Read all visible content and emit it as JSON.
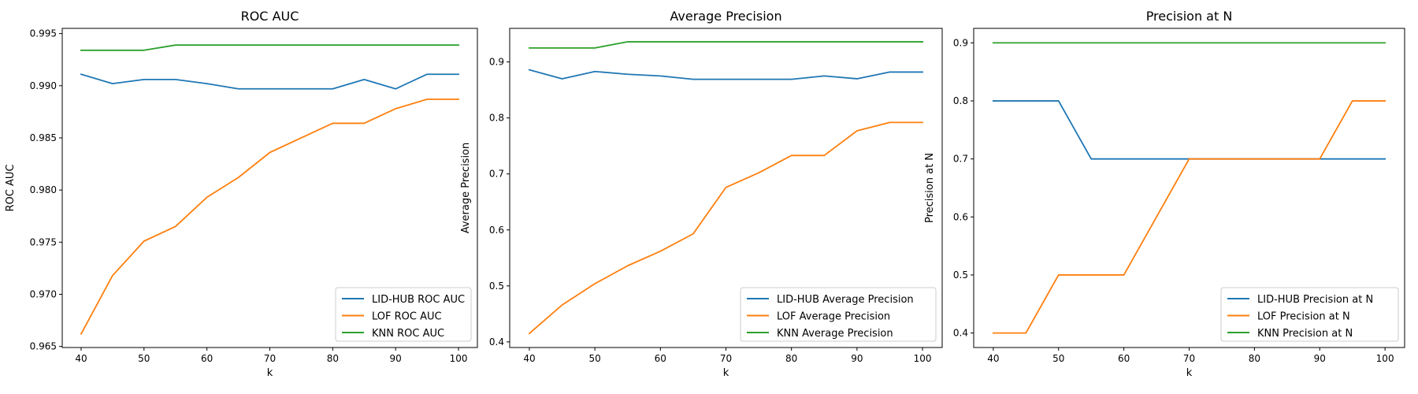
{
  "chart_data": [
    {
      "type": "line",
      "title": "ROC AUC",
      "xlabel": "k",
      "ylabel": "ROC AUC",
      "xlim": [
        37,
        103
      ],
      "ylim": [
        0.9649,
        0.9955
      ],
      "xticks": [
        40,
        50,
        60,
        70,
        80,
        90,
        100
      ],
      "xtick_labels": [
        "40",
        "50",
        "60",
        "70",
        "80",
        "90",
        "100"
      ],
      "yticks": [
        0.965,
        0.97,
        0.975,
        0.98,
        0.985,
        0.99,
        0.995
      ],
      "ytick_labels": [
        "0.965",
        "0.970",
        "0.975",
        "0.980",
        "0.985",
        "0.990",
        "0.995"
      ],
      "grid": false,
      "legend_position": "lower-right",
      "x": [
        40,
        45,
        50,
        55,
        60,
        65,
        70,
        75,
        80,
        85,
        90,
        95,
        100
      ],
      "series": [
        {
          "name": "LID-HUB ROC AUC",
          "color": "#1f77b4",
          "values": [
            0.9911,
            0.9902,
            0.9906,
            0.9906,
            0.9902,
            0.9897,
            0.9897,
            0.9897,
            0.9897,
            0.9906,
            0.9897,
            0.9911,
            0.9911
          ]
        },
        {
          "name": "LOF ROC AUC",
          "color": "#ff7f0e",
          "values": [
            0.9662,
            0.9718,
            0.9751,
            0.9765,
            0.9793,
            0.9812,
            0.9836,
            0.985,
            0.9864,
            0.9864,
            0.9878,
            0.9887,
            0.9887
          ]
        },
        {
          "name": "KNN ROC AUC",
          "color": "#2ca02c",
          "values": [
            0.9934,
            0.9934,
            0.9934,
            0.9939,
            0.9939,
            0.9939,
            0.9939,
            0.9939,
            0.9939,
            0.9939,
            0.9939,
            0.9939,
            0.9939
          ]
        }
      ]
    },
    {
      "type": "line",
      "title": "Average Precision",
      "xlabel": "k",
      "ylabel": "Average Precision",
      "xlim": [
        37,
        103
      ],
      "ylim": [
        0.39,
        0.96
      ],
      "xticks": [
        40,
        50,
        60,
        70,
        80,
        90,
        100
      ],
      "xtick_labels": [
        "40",
        "50",
        "60",
        "70",
        "80",
        "90",
        "100"
      ],
      "yticks": [
        0.4,
        0.5,
        0.6,
        0.7,
        0.8,
        0.9
      ],
      "ytick_labels": [
        "0.4",
        "0.5",
        "0.6",
        "0.7",
        "0.8",
        "0.9"
      ],
      "grid": false,
      "legend_position": "lower-right",
      "x": [
        40,
        45,
        50,
        55,
        60,
        65,
        70,
        75,
        80,
        85,
        90,
        95,
        100
      ],
      "series": [
        {
          "name": "LID-HUB Average Precision",
          "color": "#1f77b4",
          "values": [
            0.886,
            0.87,
            0.883,
            0.878,
            0.875,
            0.869,
            0.869,
            0.869,
            0.869,
            0.875,
            0.87,
            0.882,
            0.882
          ]
        },
        {
          "name": "LOF Average Precision",
          "color": "#ff7f0e",
          "values": [
            0.415,
            0.466,
            0.504,
            0.536,
            0.562,
            0.593,
            0.676,
            0.702,
            0.733,
            0.733,
            0.777,
            0.792,
            0.792
          ]
        },
        {
          "name": "KNN Average Precision",
          "color": "#2ca02c",
          "values": [
            0.925,
            0.925,
            0.925,
            0.936,
            0.936,
            0.936,
            0.936,
            0.936,
            0.936,
            0.936,
            0.936,
            0.936,
            0.936
          ]
        }
      ]
    },
    {
      "type": "line",
      "title": "Precision at N",
      "xlabel": "k",
      "ylabel": "Precision at N",
      "xlim": [
        37,
        103
      ],
      "ylim": [
        0.375,
        0.925
      ],
      "xticks": [
        40,
        50,
        60,
        70,
        80,
        90,
        100
      ],
      "xtick_labels": [
        "40",
        "50",
        "60",
        "70",
        "80",
        "90",
        "100"
      ],
      "yticks": [
        0.4,
        0.5,
        0.6,
        0.7,
        0.8,
        0.9
      ],
      "ytick_labels": [
        "0.4",
        "0.5",
        "0.6",
        "0.7",
        "0.8",
        "0.9"
      ],
      "grid": false,
      "legend_position": "lower-right",
      "x": [
        40,
        45,
        50,
        55,
        60,
        65,
        70,
        75,
        80,
        85,
        90,
        95,
        100
      ],
      "series": [
        {
          "name": "LID-HUB Precision at N",
          "color": "#1f77b4",
          "values": [
            0.8,
            0.8,
            0.8,
            0.7,
            0.7,
            0.7,
            0.7,
            0.7,
            0.7,
            0.7,
            0.7,
            0.7,
            0.7
          ]
        },
        {
          "name": "LOF Precision at N",
          "color": "#ff7f0e",
          "values": [
            0.4,
            0.4,
            0.5,
            0.5,
            0.5,
            0.6,
            0.7,
            0.7,
            0.7,
            0.7,
            0.7,
            0.8,
            0.8
          ]
        },
        {
          "name": "KNN Precision at N",
          "color": "#2ca02c",
          "values": [
            0.9,
            0.9,
            0.9,
            0.9,
            0.9,
            0.9,
            0.9,
            0.9,
            0.9,
            0.9,
            0.9,
            0.9,
            0.9
          ]
        }
      ]
    }
  ]
}
